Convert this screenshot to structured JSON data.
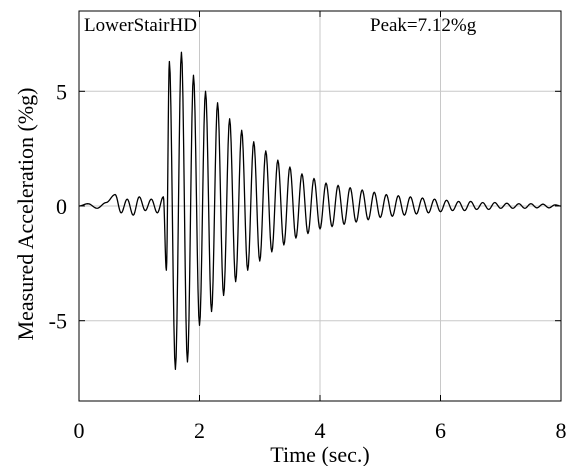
{
  "chart_data": {
    "type": "line",
    "title": "LowerStairHD",
    "annotation": "Peak=7.12%g",
    "xlabel": "Time (sec.)",
    "ylabel": "Measured Acceleration (%g)",
    "xlim": [
      0,
      8
    ],
    "ylim": [
      -8.5,
      8.5
    ],
    "x_ticks": [
      0,
      2,
      4,
      6,
      8
    ],
    "y_ticks": [
      5,
      0,
      -5
    ],
    "x_tick_labels": [
      "0",
      "2",
      "4",
      "6",
      "8"
    ],
    "y_tick_labels": [
      "5",
      "0",
      "-5"
    ],
    "grid": true,
    "line_color": "#000000",
    "grid_color": "#c8c8c8",
    "series": [
      {
        "sampling": "oscillation peaks (sec, %g)",
        "x": [
          0.0,
          0.15,
          0.3,
          0.45,
          0.6,
          0.7,
          0.8,
          0.9,
          1.0,
          1.1,
          1.2,
          1.3,
          1.4,
          1.45,
          1.5,
          1.6,
          1.7,
          1.8,
          1.9,
          2.0,
          2.1,
          2.2,
          2.3,
          2.4,
          2.5,
          2.6,
          2.7,
          2.8,
          2.9,
          3.0,
          3.1,
          3.2,
          3.3,
          3.4,
          3.5,
          3.6,
          3.7,
          3.8,
          3.9,
          4.0,
          4.1,
          4.2,
          4.3,
          4.4,
          4.5,
          4.6,
          4.7,
          4.8,
          4.9,
          5.0,
          5.1,
          5.2,
          5.3,
          5.4,
          5.5,
          5.6,
          5.7,
          5.8,
          5.9,
          6.0,
          6.1,
          6.2,
          6.3,
          6.4,
          6.5,
          6.6,
          6.7,
          6.8,
          6.9,
          7.0,
          7.1,
          7.2,
          7.3,
          7.4,
          7.5,
          7.6,
          7.7,
          7.8,
          7.9,
          8.0
        ],
        "y": [
          0.0,
          0.1,
          -0.1,
          0.15,
          0.5,
          -0.3,
          0.3,
          -0.4,
          0.4,
          -0.2,
          0.3,
          -0.3,
          0.4,
          -2.8,
          6.3,
          -7.12,
          6.7,
          -6.8,
          5.7,
          -5.2,
          5.0,
          -4.6,
          4.5,
          -3.9,
          3.8,
          -3.3,
          3.3,
          -2.8,
          2.8,
          -2.4,
          2.4,
          -2.0,
          2.0,
          -1.7,
          1.7,
          -1.4,
          1.4,
          -1.2,
          1.2,
          -1.0,
          1.0,
          -0.9,
          0.9,
          -0.8,
          0.8,
          -0.7,
          0.7,
          -0.6,
          0.6,
          -0.5,
          0.5,
          -0.45,
          0.45,
          -0.4,
          0.4,
          -0.35,
          0.35,
          -0.3,
          0.3,
          -0.25,
          0.25,
          -0.2,
          0.2,
          -0.2,
          0.2,
          -0.15,
          0.15,
          -0.15,
          0.15,
          -0.1,
          0.12,
          -0.1,
          0.1,
          -0.1,
          0.1,
          -0.08,
          0.08,
          -0.08,
          0.05,
          0.0
        ]
      }
    ]
  }
}
